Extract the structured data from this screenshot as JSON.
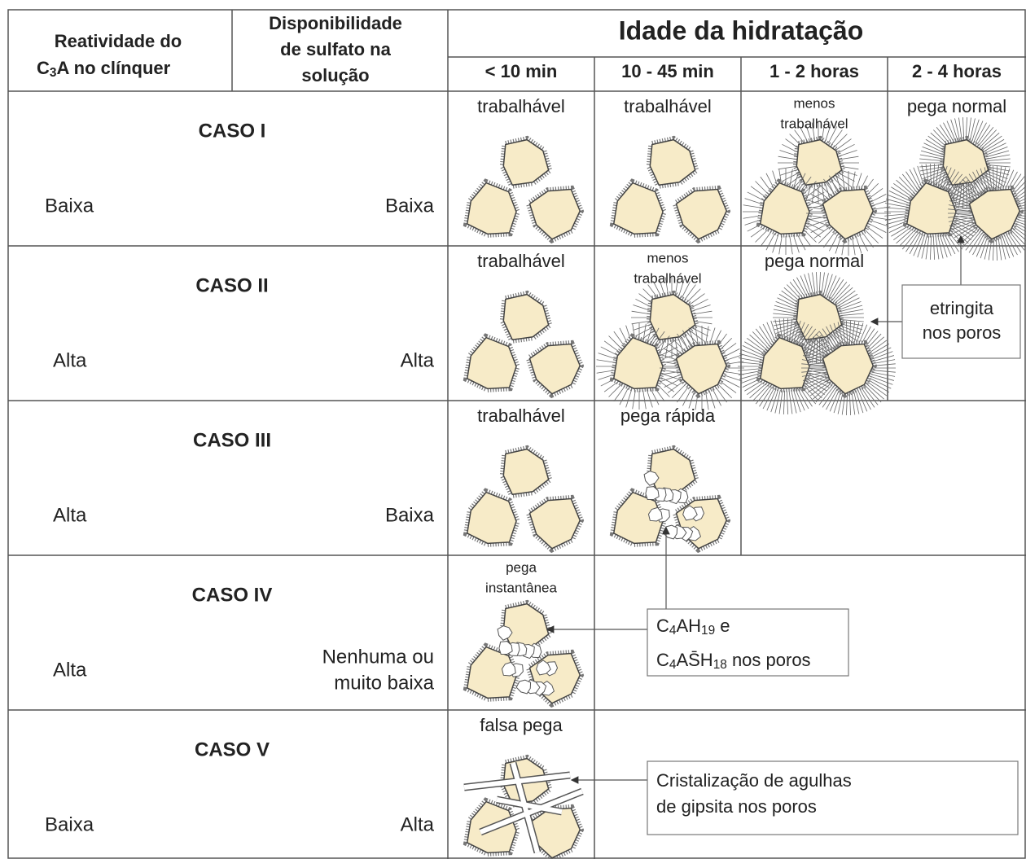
{
  "header": {
    "reactivity_line1": "Reatividade do",
    "reactivity_line2": [
      "C",
      "3",
      "A no clínquer"
    ],
    "sulfate": [
      "Disponibilidade",
      "de sulfato na",
      "solução"
    ],
    "title": "Idade da hidratação",
    "times": [
      "< 10 min",
      "10 - 45 min",
      "1 - 2 horas",
      "2 - 4 horas"
    ]
  },
  "rows": [
    {
      "case": "CASO I",
      "reactivity": "Baixa",
      "sulfate": [
        "Baixa"
      ],
      "stages": [
        [
          "trabalhável"
        ],
        [
          "trabalhável"
        ],
        [
          "menos",
          "trabalhável"
        ],
        [
          "pega normal"
        ]
      ]
    },
    {
      "case": "CASO II",
      "reactivity": "Alta",
      "sulfate": [
        "Alta"
      ],
      "stages": [
        [
          "trabalhável"
        ],
        [
          "menos",
          "trabalhável"
        ],
        [
          "pega normal"
        ]
      ]
    },
    {
      "case": "CASO III",
      "reactivity": "Alta",
      "sulfate": [
        "Baixa"
      ],
      "stages": [
        [
          "trabalhável"
        ],
        [
          "pega rápida"
        ]
      ]
    },
    {
      "case": "CASO IV",
      "reactivity": "Alta",
      "sulfate": [
        "Nenhuma ou",
        "muito baixa"
      ],
      "stages": [
        [
          "pega",
          "instantânea"
        ]
      ]
    },
    {
      "case": "CASO V",
      "reactivity": "Baixa",
      "sulfate": [
        "Alta"
      ],
      "stages": [
        [
          "falsa pega"
        ]
      ]
    }
  ],
  "annotations": {
    "ettringite": [
      "etringita",
      "nos poros"
    ],
    "c4ah_line1": [
      "C",
      "4",
      "AH",
      "19",
      " e"
    ],
    "c4ah_line2": [
      "C",
      "4",
      "AS̄H",
      "18",
      " nos poros"
    ],
    "gypsum": [
      "Cristalização de agulhas",
      "de gipsita nos poros"
    ]
  }
}
